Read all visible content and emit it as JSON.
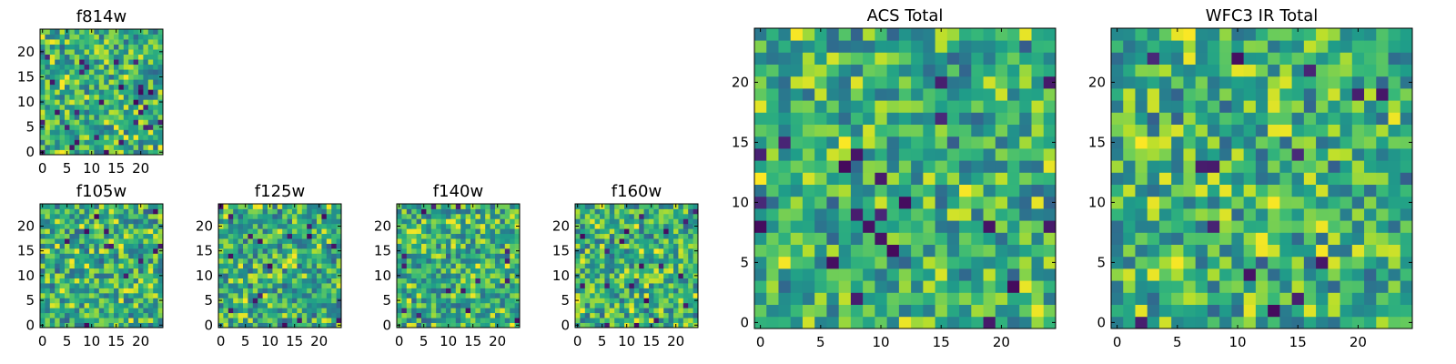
{
  "chart_data": [
    {
      "id": "f814w",
      "type": "heatmap",
      "title": "f814w",
      "grid_size": [
        25,
        25
      ],
      "colormap": "viridis",
      "xticks": [
        "0",
        "5",
        "10",
        "15",
        "20"
      ],
      "yticks": [
        "0",
        "5",
        "10",
        "15",
        "20"
      ]
    },
    {
      "id": "f105w",
      "type": "heatmap",
      "title": "f105w",
      "grid_size": [
        25,
        25
      ],
      "colormap": "viridis",
      "xticks": [
        "0",
        "5",
        "10",
        "15",
        "20"
      ],
      "yticks": [
        "0",
        "5",
        "10",
        "15",
        "20"
      ]
    },
    {
      "id": "f125w",
      "type": "heatmap",
      "title": "f125w",
      "grid_size": [
        25,
        25
      ],
      "colormap": "viridis",
      "xticks": [
        "0",
        "5",
        "10",
        "15",
        "20"
      ],
      "yticks": [
        "0",
        "5",
        "10",
        "15",
        "20"
      ]
    },
    {
      "id": "f140w",
      "type": "heatmap",
      "title": "f140w",
      "grid_size": [
        25,
        25
      ],
      "colormap": "viridis",
      "xticks": [
        "0",
        "5",
        "10",
        "15",
        "20"
      ],
      "yticks": [
        "0",
        "5",
        "10",
        "15",
        "20"
      ]
    },
    {
      "id": "f160w",
      "type": "heatmap",
      "title": "f160w",
      "grid_size": [
        25,
        25
      ],
      "colormap": "viridis",
      "xticks": [
        "0",
        "5",
        "10",
        "15",
        "20"
      ],
      "yticks": [
        "0",
        "5",
        "10",
        "15",
        "20"
      ]
    },
    {
      "id": "acs_total",
      "type": "heatmap",
      "title": "ACS Total",
      "grid_size": [
        25,
        25
      ],
      "colormap": "viridis",
      "xticks": [
        "0",
        "5",
        "10",
        "15",
        "20"
      ],
      "yticks": [
        "0",
        "5",
        "10",
        "15",
        "20"
      ]
    },
    {
      "id": "wfc3_ir_total",
      "type": "heatmap",
      "title": "WFC3 IR Total",
      "grid_size": [
        25,
        25
      ],
      "colormap": "viridis",
      "xticks": [
        "0",
        "5",
        "10",
        "15",
        "20"
      ],
      "yticks": [
        "0",
        "5",
        "10",
        "15",
        "20"
      ]
    }
  ]
}
